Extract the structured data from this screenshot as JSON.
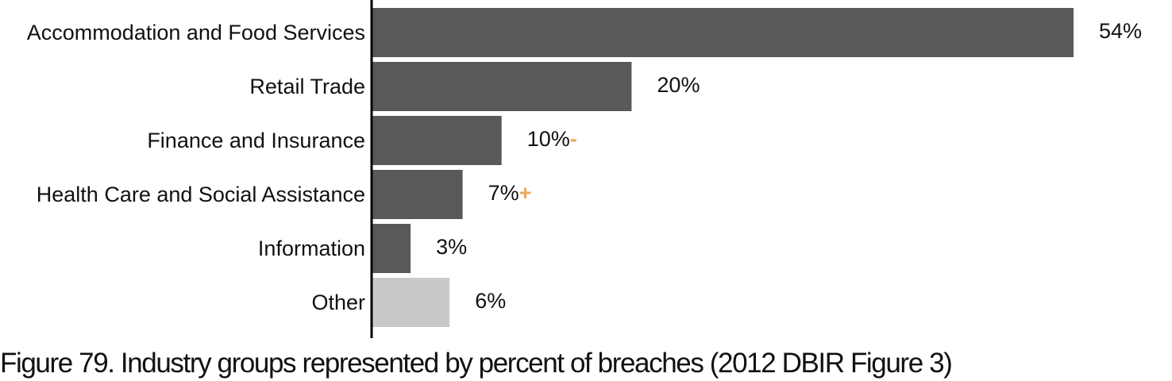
{
  "chart_data": {
    "type": "bar",
    "orientation": "horizontal",
    "categories": [
      "Accommodation and Food Services",
      "Retail Trade",
      "Finance and Insurance",
      "Health Care and Social Assistance",
      "Information",
      "Other"
    ],
    "values": [
      54,
      20,
      10,
      7,
      3,
      6
    ],
    "value_labels": [
      "54%",
      "20%",
      "10%",
      "7%",
      "3%",
      "6%"
    ],
    "trend_markers": [
      "",
      "",
      "-",
      "+",
      "",
      ""
    ],
    "bar_colors": [
      "#58595b",
      "#58595b",
      "#58595b",
      "#58595b",
      "#58595b",
      "#c8c9cb"
    ],
    "marker_color": "#e8a95a",
    "axis_color": "#000000",
    "xlim": [
      0,
      54
    ],
    "grid": false,
    "legend": "none",
    "xlabel": "",
    "ylabel": ""
  },
  "caption": "Figure 79. Industry groups represented by percent of breaches (2012 DBIR Figure 3)"
}
